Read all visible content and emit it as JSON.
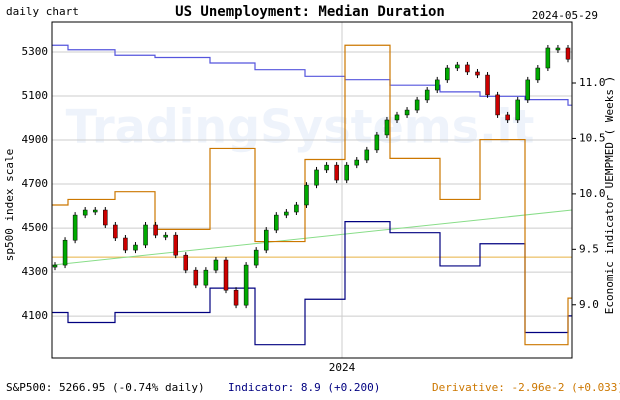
{
  "chart_data": {
    "type": "candlestick",
    "title": "US Unemployment: Median Duration",
    "subtitle": "daily chart",
    "date": "2024-05-29",
    "watermark": "TradingSystems.it",
    "ylabel": "sp500 index scale",
    "y2label": "Economic indicator UEMPMED ( Weeks )",
    "xtick_label": "2024",
    "footer": [
      "S&P500: 5266.95 (-0.74% daily)",
      "Indicator: 8.9 (+0.200)",
      "Derivative: -2.96e-2 (+0.033)"
    ],
    "ylim": [
      3910,
      5436
    ],
    "yticks": [
      4100,
      4300,
      4500,
      4700,
      4900,
      5100,
      5300
    ],
    "y2lim": [
      8.52,
      11.55
    ],
    "y2ticks": [
      {
        "value": 9,
        "label": "9.0"
      },
      9.5,
      {
        "value": 10,
        "label": "10.0"
      },
      10.5,
      {
        "value": 11,
        "label": "11.0"
      }
    ],
    "grid": true,
    "close": [
      4332,
      4445,
      4559,
      4582,
      4582,
      4514,
      4455,
      4400,
      4423,
      4514,
      4468,
      4468,
      4377,
      4309,
      4241,
      4309,
      4355,
      4218,
      4150,
      4332,
      4400,
      4491,
      4559,
      4573,
      4605,
      4695,
      4764,
      4786,
      4718,
      4786,
      4809,
      4855,
      4923,
      4991,
      5014,
      5036,
      5082,
      5127,
      5173,
      5227,
      5241,
      5209,
      5195,
      5105,
      5014,
      4991,
      5082,
      5173,
      5227,
      5318,
      5318,
      5267
    ],
    "series": [
      {
        "name": "Indicator",
        "color": "#000080",
        "axis": "y2",
        "values": [
          8.93,
          8.84,
          8.93,
          8.93,
          9.15,
          8.64,
          9.05,
          9.75,
          9.65,
          9.35,
          9.55,
          8.75,
          8.9
        ]
      },
      {
        "name": "Average",
        "color": "#5555dd",
        "axis": "y2",
        "values": [
          11.34,
          11.3,
          11.25,
          11.23,
          11.18,
          11.12,
          11.06,
          11.03,
          10.98,
          10.92,
          10.88,
          10.85,
          10.8
        ]
      },
      {
        "name": "Derivative",
        "color": "#cc7700",
        "axis": "y2",
        "values": [
          9.9,
          9.95,
          10.02,
          9.68,
          10.41,
          9.57,
          10.31,
          11.34,
          10.32,
          9.95,
          10.49,
          8.64,
          9.06
        ]
      }
    ],
    "derivative_zero": 9.43,
    "derivative_zero_color": "#e8b040",
    "trend": {
      "color": "#88dd88",
      "values": [
        4332,
        4582
      ]
    }
  }
}
